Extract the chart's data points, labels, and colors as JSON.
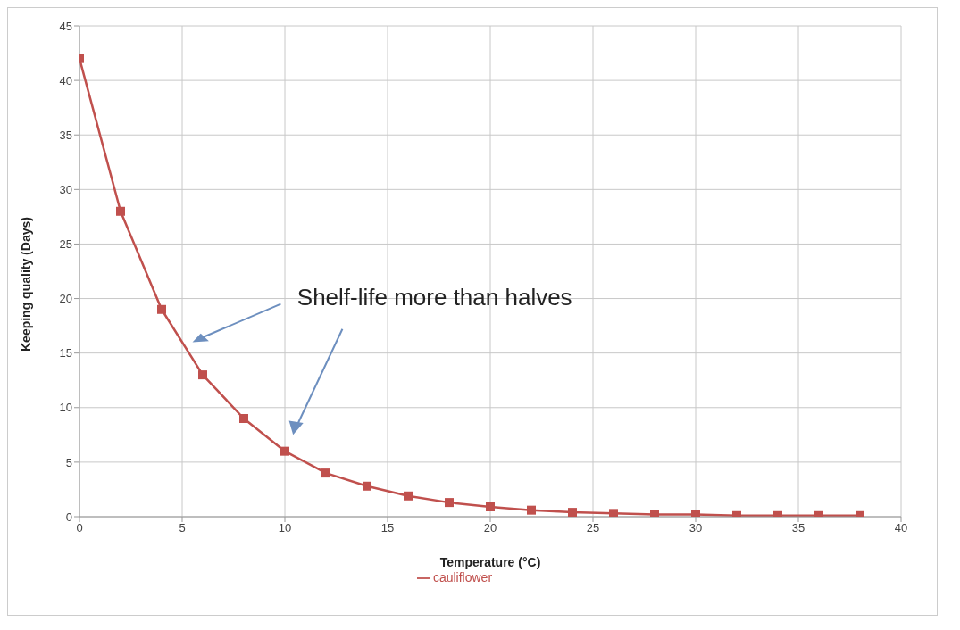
{
  "chart_data": {
    "type": "line",
    "xlabel": "Temperature (°C)",
    "ylabel": "Keeping quality (Days)",
    "x": [
      0,
      2,
      4,
      6,
      8,
      10,
      12,
      14,
      16,
      18,
      20,
      22,
      24,
      26,
      28,
      30,
      32,
      34,
      36,
      38
    ],
    "series": [
      {
        "name": "cauliflower",
        "color": "#c0504d",
        "values": [
          42,
          28,
          19,
          13,
          9,
          6,
          4,
          2.8,
          1.9,
          1.3,
          0.9,
          0.6,
          0.4,
          0.3,
          0.2,
          0.2,
          0.1,
          0.1,
          0.1,
          0.1
        ]
      }
    ],
    "xlim": [
      0,
      40
    ],
    "xticks": [
      0,
      5,
      10,
      15,
      20,
      25,
      30,
      35,
      40
    ],
    "ylim": [
      0,
      45
    ],
    "yticks": [
      0,
      5,
      10,
      15,
      20,
      25,
      30,
      35,
      40,
      45
    ],
    "grid": true,
    "legend": "bottom",
    "marker": "square",
    "line_style": "solid",
    "annotations": [
      "Shelf-life more than halves"
    ]
  }
}
